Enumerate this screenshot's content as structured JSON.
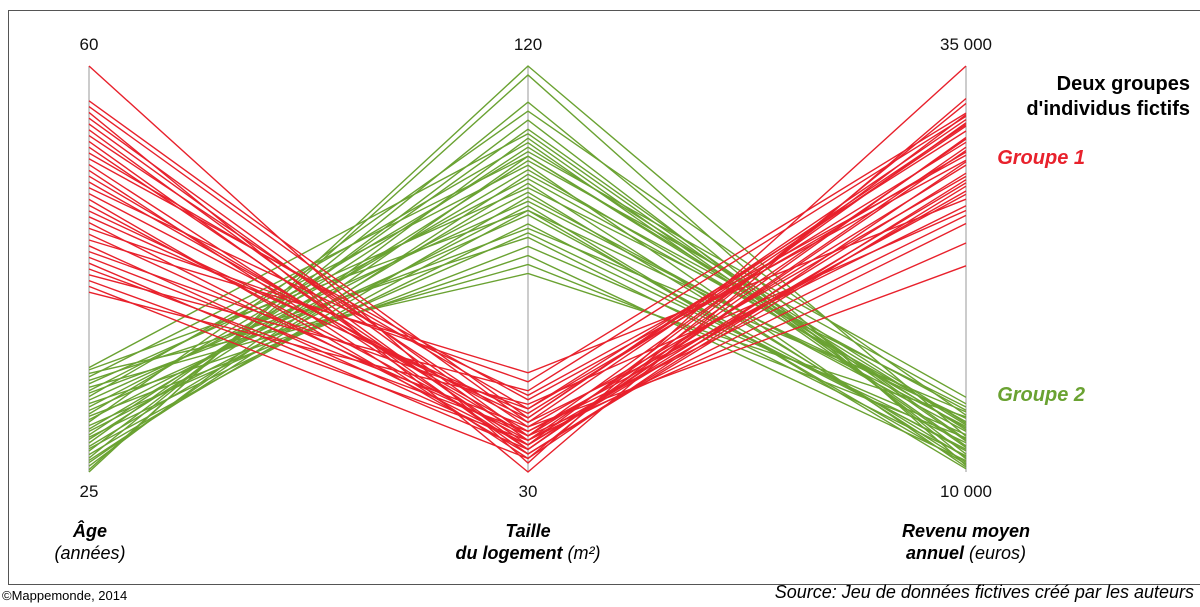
{
  "chart_data": {
    "type": "parallel-coordinates",
    "title": "",
    "axes": [
      {
        "name": "Âge",
        "unit": "(années)",
        "min": 25,
        "max": 60,
        "min_label": "25",
        "max_label": "60"
      },
      {
        "name_line1": "Taille",
        "name_line2": "du logement",
        "unit": "(m²)",
        "min": 30,
        "max": 120,
        "min_label": "30",
        "max_label": "120"
      },
      {
        "name_line1": "Revenu moyen",
        "name_line2": "annuel",
        "unit": "(euros)",
        "min": 10000,
        "max": 35000,
        "min_label": "10 000",
        "max_label": "35 000"
      }
    ],
    "legend_title_line1": "Deux groupes",
    "legend_title_line2": "d'individus fictifs",
    "series": [
      {
        "name": "Groupe 1",
        "color": "#e8212c",
        "lines": [
          [
            60,
            32,
            35000
          ],
          [
            57,
            42,
            31700
          ],
          [
            56.5,
            41,
            31300
          ],
          [
            56,
            30,
            33000
          ],
          [
            55.5,
            38,
            31500
          ],
          [
            55,
            37,
            30500
          ],
          [
            54.5,
            35,
            29800
          ],
          [
            54,
            40,
            28200
          ],
          [
            53.5,
            34,
            27600
          ],
          [
            53,
            36,
            32000
          ],
          [
            52.5,
            44,
            31000
          ],
          [
            52,
            46,
            29200
          ],
          [
            51.5,
            35,
            30000
          ],
          [
            51,
            33,
            32700
          ],
          [
            50.5,
            38,
            28900
          ],
          [
            50,
            39,
            27100
          ],
          [
            49.5,
            47,
            29500
          ],
          [
            49,
            41,
            26400
          ],
          [
            48.5,
            34,
            28000
          ],
          [
            48,
            37,
            25300
          ],
          [
            47.5,
            42,
            31400
          ],
          [
            47,
            43,
            30300
          ],
          [
            46.5,
            36,
            27800
          ],
          [
            46,
            50,
            32100
          ],
          [
            45.5,
            38,
            24100
          ],
          [
            45,
            52,
            26800
          ],
          [
            44.5,
            36,
            28400
          ],
          [
            44,
            44,
            29700
          ],
          [
            43.5,
            40,
            22700
          ],
          [
            43,
            35,
            30600
          ],
          [
            42.5,
            39,
            25800
          ],
          [
            42,
            48,
            31900
          ],
          [
            41.5,
            37,
            27300
          ],
          [
            41,
            33,
            29100
          ],
          [
            40.5,
            45,
            26100
          ]
        ]
      },
      {
        "name": "Groupe 2",
        "color": "#6aa232",
        "lines": [
          [
            25,
            120,
            12200
          ],
          [
            25.2,
            118,
            10400
          ],
          [
            25.5,
            104,
            11600
          ],
          [
            25.8,
            100,
            12900
          ],
          [
            26,
            96,
            13800
          ],
          [
            26.2,
            112,
            10800
          ],
          [
            26.5,
            91,
            12500
          ],
          [
            26.8,
            108,
            11100
          ],
          [
            27,
            88,
            13300
          ],
          [
            27.2,
            94,
            10600
          ],
          [
            27.5,
            106,
            12000
          ],
          [
            27.8,
            99,
            14200
          ],
          [
            28,
            85,
            11400
          ],
          [
            28.2,
            102,
            13000
          ],
          [
            28.5,
            89,
            10200
          ],
          [
            28.7,
            97,
            12700
          ],
          [
            29,
            83,
            11800
          ],
          [
            29.3,
            110,
            13500
          ],
          [
            29.5,
            92,
            10900
          ],
          [
            29.8,
            80,
            12300
          ],
          [
            30,
            101,
            14600
          ],
          [
            30.3,
            87,
            11300
          ],
          [
            30.6,
            95,
            13100
          ],
          [
            30.9,
            78,
            10700
          ],
          [
            31.2,
            90,
            12800
          ],
          [
            31.5,
            103,
            11500
          ],
          [
            31.8,
            84,
            13700
          ],
          [
            32,
            98,
            10300
          ],
          [
            32.3,
            76,
            12100
          ],
          [
            32.6,
            93,
            14000
          ],
          [
            32.9,
            82,
            11000
          ],
          [
            33.2,
            100,
            12600
          ],
          [
            33.5,
            74,
            13400
          ],
          [
            33.8,
            88,
            10500
          ],
          [
            34,
            105,
            11900
          ]
        ]
      }
    ]
  },
  "credit": "©Mappemonde, 2014",
  "source": "Source: Jeu de données fictives créé par les auteurs"
}
